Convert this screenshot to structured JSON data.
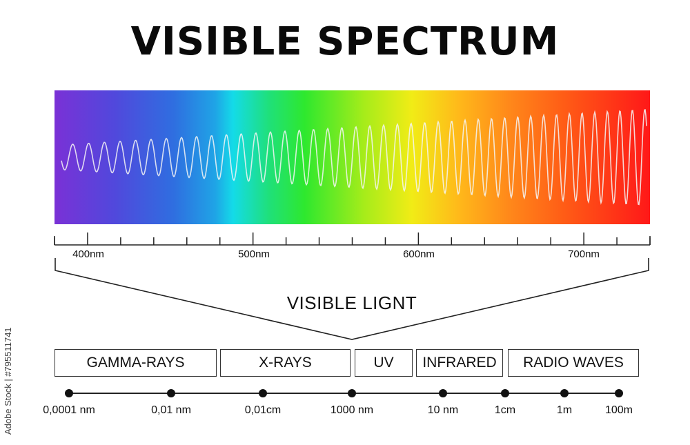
{
  "title": "VISIBLE SPECTRUM",
  "spectrum_scale": {
    "range_nm": [
      380,
      740
    ],
    "labels": [
      {
        "value": 400,
        "text": "400nm"
      },
      {
        "value": 500,
        "text": "500nm"
      },
      {
        "value": 600,
        "text": "600nm"
      },
      {
        "value": 700,
        "text": "700nm"
      }
    ],
    "gradient_colors": [
      "#7a31d6",
      "#2f6ee0",
      "#14dbe8",
      "#2ee82e",
      "#f1ec16",
      "#ff8a1a",
      "#ff1818"
    ],
    "wave_color": "#f4f4f4"
  },
  "visible_light_label": "VISIBLE LIGNT",
  "bands": [
    {
      "label": "GAMMA-RAYS"
    },
    {
      "label": "X-RAYS"
    },
    {
      "label": "UV"
    },
    {
      "label": "INFRARED"
    },
    {
      "label": "RADIO WAVES"
    }
  ],
  "wavelength_axis": [
    {
      "text": "0,0001 nm"
    },
    {
      "text": "0,01 nm"
    },
    {
      "text": "0,01cm"
    },
    {
      "text": "1000 nm"
    },
    {
      "text": "10 nm"
    },
    {
      "text": "1cm"
    },
    {
      "text": "1m"
    },
    {
      "text": "100m"
    }
  ],
  "stock_id": "Adobe Stock | #795511741"
}
